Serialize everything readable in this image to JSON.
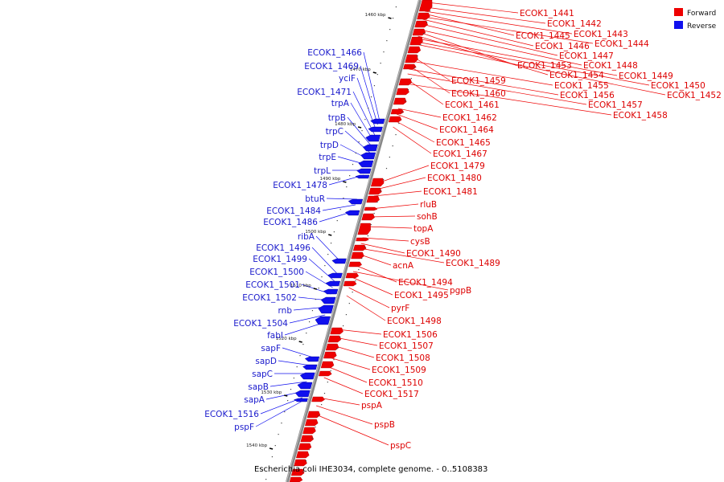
{
  "caption": "Escherichia coli IHE3034, complete genome. - 0..5108383",
  "legend": [
    {
      "label": "Forward",
      "color": "#ee0000"
    },
    {
      "label": "Reverse",
      "color": "#1010ee"
    }
  ],
  "ticks": [
    "1460 kbp",
    "1470 kbp",
    "1480 kbp",
    "1490 kbp",
    "1500 kbp",
    "1510 kbp",
    "1520 kbp",
    "1530 kbp",
    "1540 kbp"
  ],
  "forward_labels": [
    "ECOK1_1441",
    "ECOK1_1442",
    "ECOK1_1443",
    "ECOK1_1445",
    "ECOK1_1444",
    "ECOK1_1446",
    "ECOK1_1447",
    "ECOK1_1448",
    "ECOK1_1453",
    "ECOK1_1454",
    "ECOK1_1449",
    "ECOK1_1450",
    "ECOK1_1452",
    "ECOK1_1459",
    "ECOK1_1455",
    "ECOK1_1460",
    "ECOK1_1456",
    "ECOK1_1457",
    "ECOK1_1461",
    "ECOK1_1458",
    "ECOK1_1462",
    "ECOK1_1464",
    "ECOK1_1465",
    "ECOK1_1467",
    "ECOK1_1479",
    "ECOK1_1480",
    "ECOK1_1481",
    "rluB",
    "sohB",
    "topA",
    "cysB",
    "ECOK1_1490",
    "ECOK1_1489",
    "acnA",
    "ECOK1_1494",
    "pgpB",
    "ECOK1_1495",
    "pyrF",
    "ECOK1_1498",
    "ECOK1_1506",
    "ECOK1_1507",
    "ECOK1_1508",
    "ECOK1_1509",
    "ECOK1_1510",
    "ECOK1_1517",
    "pspA",
    "pspB",
    "pspC"
  ],
  "reverse_labels": [
    "ECOK1_1466",
    "ECOK1_1469",
    "yciF",
    "ECOK1_1471",
    "trpA",
    "trpB",
    "trpC",
    "trpD",
    "trpE",
    "trpL",
    "ECOK1_1478",
    "btuR",
    "ECOK1_1484",
    "ECOK1_1486",
    "ribA",
    "ECOK1_1496",
    "ECOK1_1499",
    "ECOK1_1500",
    "ECOK1_1501",
    "ECOK1_1502",
    "rnb",
    "ECOK1_1504",
    "fabI",
    "sapF",
    "sapD",
    "sapC",
    "sapB",
    "sapA",
    "ECOK1_1516",
    "pspF"
  ]
}
